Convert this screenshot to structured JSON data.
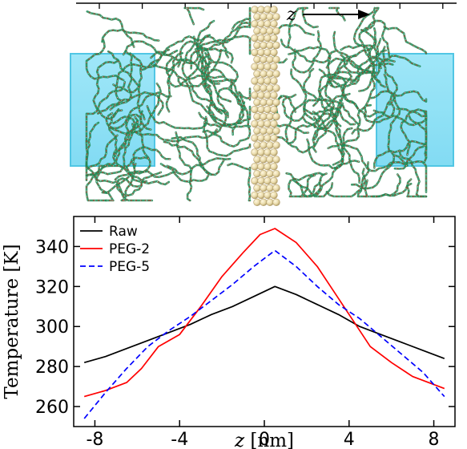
{
  "figure": {
    "illustration": {
      "z_label": "z",
      "colors": {
        "water": "#5fd3f0",
        "water_edge": "#2ab8dc",
        "graphene": "#e8d9a8",
        "graphene_shade": "#b8a474",
        "chain_green": "#1e8a55",
        "chain_red": "#c0392b",
        "chain_white": "#f2f2f2"
      }
    }
  },
  "chart_data": {
    "type": "line",
    "xlabel_var": "z",
    "xlabel_unit": " [nm]",
    "ylabel": "Temperature [K]",
    "xlim": [
      -9,
      9
    ],
    "ylim": [
      250,
      355
    ],
    "xticks": [
      -8,
      -4,
      0,
      4,
      8
    ],
    "yticks": [
      260,
      280,
      300,
      320,
      340
    ],
    "legend": "top-left",
    "grid": false,
    "series": [
      {
        "name": "Raw",
        "color": "#000000",
        "dash": "solid",
        "x": [
          -8.5,
          -7.5,
          -6.5,
          -5.5,
          -4.5,
          -3.5,
          -2.5,
          -1.5,
          -0.5,
          0.5,
          1.5,
          2.5,
          3.5,
          4.5,
          5.5,
          6.5,
          7.5,
          8.5
        ],
        "y": [
          282,
          285,
          289,
          293,
          297,
          301,
          306,
          310,
          315,
          320,
          316,
          311,
          306,
          300,
          296,
          292,
          288,
          284
        ]
      },
      {
        "name": "PEG-2",
        "color": "#ff0000",
        "dash": "solid",
        "x": [
          -8.5,
          -7.5,
          -6.5,
          -5.8,
          -5.0,
          -4.0,
          -3.0,
          -2.0,
          -1.0,
          -0.2,
          0.5,
          1.5,
          2.5,
          3.5,
          4.5,
          5.0,
          6.0,
          7.0,
          8.5
        ],
        "y": [
          265,
          268,
          272,
          279,
          290,
          296,
          310,
          325,
          337,
          346,
          349,
          342,
          330,
          314,
          298,
          290,
          282,
          275,
          269
        ]
      },
      {
        "name": "PEG-5",
        "color": "#0000ff",
        "dash": "dashed",
        "x": [
          -8.5,
          -7.5,
          -6.5,
          -5.5,
          -4.5,
          -3.5,
          -2.5,
          -1.5,
          -0.5,
          0.5,
          1.5,
          2.5,
          3.5,
          4.5,
          5.5,
          6.5,
          7.5,
          8.5
        ],
        "y": [
          254,
          267,
          279,
          290,
          298,
          305,
          313,
          321,
          330,
          338,
          330,
          320,
          311,
          304,
          295,
          286,
          277,
          265
        ]
      }
    ]
  }
}
